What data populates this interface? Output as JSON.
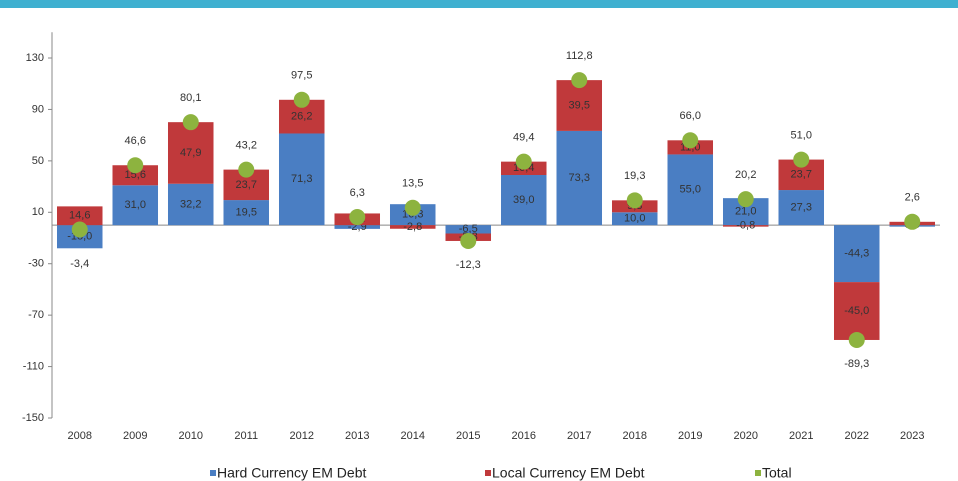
{
  "chart_data": {
    "type": "bar",
    "categories": [
      "2008",
      "2009",
      "2010",
      "2011",
      "2012",
      "2013",
      "2014",
      "2015",
      "2016",
      "2017",
      "2018",
      "2019",
      "2020",
      "2021",
      "2022",
      "2023"
    ],
    "series": [
      {
        "name": "Hard Currency EM Debt",
        "color": "#4a7ec3",
        "values": [
          -18.0,
          31.0,
          32.2,
          19.5,
          71.3,
          -2.9,
          16.3,
          -6.5,
          39.0,
          73.3,
          10.0,
          55.0,
          21.0,
          27.3,
          -44.3,
          0.0
        ],
        "value_labels": [
          "-18,0",
          "31,0",
          "32,2",
          "19,5",
          "71,3",
          "-2,9",
          "16,3",
          "-6,5",
          "39,0",
          "73,3",
          "10,0",
          "55,0",
          "21,0",
          "27,3",
          "-44,3",
          "0,0"
        ]
      },
      {
        "name": "Local Currency EM Debt",
        "color": "#c0393b",
        "values": [
          14.6,
          15.6,
          47.9,
          23.7,
          26.2,
          9.1,
          -2.8,
          -5.8,
          10.4,
          39.5,
          9.3,
          11.0,
          -0.8,
          23.7,
          -45.0,
          2.6
        ],
        "value_labels": [
          "14,6",
          "15,6",
          "47,9",
          "23,7",
          "26,2",
          "9,1",
          "-2,8",
          "-5,8",
          "10,4",
          "39,5",
          "9,3",
          "11,0",
          "-0,8",
          "23,7",
          "-45,0",
          "2,6"
        ]
      },
      {
        "name": "Total",
        "color": "#8db33f",
        "values": [
          -3.4,
          46.6,
          80.1,
          43.2,
          97.5,
          6.3,
          13.5,
          -12.3,
          49.4,
          112.8,
          19.3,
          66.0,
          20.2,
          51.0,
          -89.3,
          2.6
        ],
        "value_labels": [
          "-3,4",
          "46,6",
          "80,1",
          "43,2",
          "97,5",
          "6,3",
          "13,5",
          "-12,3",
          "49,4",
          "112,8",
          "19,3",
          "66,0",
          "20,2",
          "51,0",
          "-89,3",
          "2,6"
        ]
      }
    ],
    "ylim": [
      -150,
      150
    ],
    "yticks": [
      -150,
      -110,
      -70,
      -30,
      10,
      50,
      90,
      130
    ]
  }
}
